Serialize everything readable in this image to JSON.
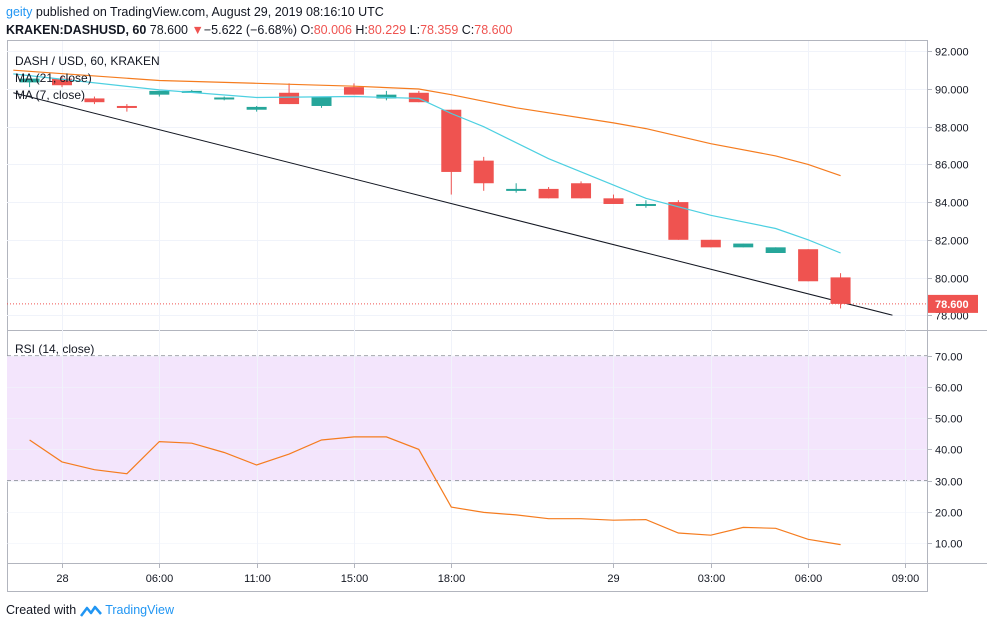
{
  "header": {
    "user": "geity",
    "published_text": "published on TradingView.com, August 29, 2019 08:16:10 UTC",
    "symbol": "KRAKEN:DASHUSD, 60",
    "last": "78.600",
    "change_arrow": "▼",
    "change": "−5.622 (−6.68%)",
    "o_label": "O:",
    "o_val": "80.006",
    "h_label": "H:",
    "h_val": "80.229",
    "l_label": "L:",
    "l_val": "78.359",
    "c_label": "C:",
    "c_val": "78.600"
  },
  "legend": {
    "title": "DASH / USD, 60, KRAKEN",
    "ma21": "MA (21, close)",
    "ma7": "MA (7, close)",
    "rsi": "RSI (14, close)"
  },
  "price_tag": "78.600",
  "footer": {
    "created_with": "Created with",
    "brand": "TradingView"
  },
  "colors": {
    "up": "#26a69a",
    "down": "#ef5350",
    "ma21": "#f57c1f",
    "ma7": "#4dd0e1",
    "rsi_line": "#f57c1f",
    "rsi_band": "#f3e5fc",
    "trendline": "#131722",
    "accent": "#2196f3"
  },
  "chart_data": [
    {
      "type": "candlestick",
      "title": "DASH / USD, 60, KRAKEN",
      "ylim": [
        77.5,
        92.5
      ],
      "y_ticks": [
        "92.000",
        "90.000",
        "88.000",
        "86.000",
        "84.000",
        "82.000",
        "80.000",
        "78.000"
      ],
      "x_ticks": [
        {
          "label": "28",
          "x": 0
        },
        {
          "label": "06:00",
          "x": 3
        },
        {
          "label": "11:00",
          "x": 6
        },
        {
          "label": "15:00",
          "x": 9
        },
        {
          "label": "18:00",
          "x": 12
        },
        {
          "label": "29",
          "x": 17
        },
        {
          "label": "03:00",
          "x": 20
        },
        {
          "label": "06:00",
          "x": 23
        },
        {
          "label": "09:00",
          "x": 26
        }
      ],
      "candles": [
        {
          "x": -1,
          "o": 90.35,
          "h": 90.5,
          "l": 90.1,
          "c": 90.55
        },
        {
          "x": 0,
          "o": 90.55,
          "h": 90.7,
          "l": 90.1,
          "c": 90.2
        },
        {
          "x": 1,
          "o": 89.5,
          "h": 89.6,
          "l": 89.2,
          "c": 89.3
        },
        {
          "x": 2,
          "o": 89.1,
          "h": 89.2,
          "l": 88.8,
          "c": 89.05
        },
        {
          "x": 3,
          "o": 89.7,
          "h": 89.9,
          "l": 89.6,
          "c": 89.9
        },
        {
          "x": 4,
          "o": 89.85,
          "h": 89.95,
          "l": 89.8,
          "c": 89.9
        },
        {
          "x": 5,
          "o": 89.5,
          "h": 89.6,
          "l": 89.4,
          "c": 89.55
        },
        {
          "x": 6,
          "o": 88.9,
          "h": 89.1,
          "l": 88.8,
          "c": 89.05
        },
        {
          "x": 7,
          "o": 89.8,
          "h": 90.3,
          "l": 89.2,
          "c": 89.2
        },
        {
          "x": 8,
          "o": 89.1,
          "h": 89.6,
          "l": 89.0,
          "c": 89.6
        },
        {
          "x": 9,
          "o": 90.1,
          "h": 90.3,
          "l": 89.7,
          "c": 89.7
        },
        {
          "x": 10,
          "o": 89.5,
          "h": 89.9,
          "l": 89.4,
          "c": 89.7
        },
        {
          "x": 11,
          "o": 89.8,
          "h": 89.9,
          "l": 89.3,
          "c": 89.3
        },
        {
          "x": 12,
          "o": 88.9,
          "h": 88.9,
          "l": 84.4,
          "c": 85.6
        },
        {
          "x": 13,
          "o": 86.2,
          "h": 86.4,
          "l": 84.6,
          "c": 85.0
        },
        {
          "x": 14,
          "o": 84.6,
          "h": 85.0,
          "l": 84.5,
          "c": 84.7
        },
        {
          "x": 15,
          "o": 84.7,
          "h": 84.8,
          "l": 84.2,
          "c": 84.2
        },
        {
          "x": 16,
          "o": 85.0,
          "h": 85.1,
          "l": 84.2,
          "c": 84.2
        },
        {
          "x": 17,
          "o": 84.2,
          "h": 84.4,
          "l": 83.9,
          "c": 83.9
        },
        {
          "x": 18,
          "o": 83.9,
          "h": 84.1,
          "l": 83.7,
          "c": 83.9
        },
        {
          "x": 19,
          "o": 84.0,
          "h": 84.1,
          "l": 82.0,
          "c": 82.0
        },
        {
          "x": 20,
          "o": 82.0,
          "h": 82.0,
          "l": 81.6,
          "c": 81.6
        },
        {
          "x": 21,
          "o": 81.6,
          "h": 81.8,
          "l": 81.6,
          "c": 81.8
        },
        {
          "x": 22,
          "o": 81.3,
          "h": 81.6,
          "l": 81.3,
          "c": 81.6
        },
        {
          "x": 23,
          "o": 81.5,
          "h": 81.5,
          "l": 79.8,
          "c": 79.8
        },
        {
          "x": 24,
          "o": 80.006,
          "h": 80.229,
          "l": 78.359,
          "c": 78.6
        }
      ],
      "ma21": [
        {
          "x": -1.5,
          "y": 91.0
        },
        {
          "x": 3,
          "y": 90.45
        },
        {
          "x": 6,
          "y": 90.3
        },
        {
          "x": 9,
          "y": 90.15
        },
        {
          "x": 11,
          "y": 90.0
        },
        {
          "x": 12,
          "y": 89.7
        },
        {
          "x": 14,
          "y": 89.0
        },
        {
          "x": 17,
          "y": 88.2
        },
        {
          "x": 18,
          "y": 87.9
        },
        {
          "x": 20,
          "y": 87.1
        },
        {
          "x": 22,
          "y": 86.45
        },
        {
          "x": 23,
          "y": 86.0
        },
        {
          "x": 24,
          "y": 85.4
        }
      ],
      "ma7": [
        {
          "x": -1.5,
          "y": 90.8
        },
        {
          "x": 3,
          "y": 89.95
        },
        {
          "x": 6,
          "y": 89.55
        },
        {
          "x": 9,
          "y": 89.6
        },
        {
          "x": 11,
          "y": 89.5
        },
        {
          "x": 12,
          "y": 88.7
        },
        {
          "x": 13,
          "y": 88.0
        },
        {
          "x": 15,
          "y": 86.3
        },
        {
          "x": 17,
          "y": 84.9
        },
        {
          "x": 18,
          "y": 84.2
        },
        {
          "x": 20,
          "y": 83.3
        },
        {
          "x": 22,
          "y": 82.6
        },
        {
          "x": 23,
          "y": 82.0
        },
        {
          "x": 24,
          "y": 81.3
        }
      ],
      "trendline": [
        {
          "x": -1.5,
          "y": 89.8
        },
        {
          "x": 25.6,
          "y": 78.0
        }
      ],
      "last_price": 78.6
    },
    {
      "type": "line",
      "title": "RSI (14, close)",
      "ylim": [
        4,
        74
      ],
      "y_ticks": [
        "70.00",
        "60.00",
        "50.00",
        "40.00",
        "30.00",
        "20.00",
        "10.00"
      ],
      "band": [
        30,
        70
      ],
      "values": [
        {
          "x": -1,
          "y": 43
        },
        {
          "x": 0,
          "y": 36
        },
        {
          "x": 1,
          "y": 33.5
        },
        {
          "x": 2,
          "y": 32.2
        },
        {
          "x": 3,
          "y": 42.5
        },
        {
          "x": 4,
          "y": 42
        },
        {
          "x": 5,
          "y": 39
        },
        {
          "x": 6,
          "y": 35
        },
        {
          "x": 7,
          "y": 38.5
        },
        {
          "x": 8,
          "y": 43
        },
        {
          "x": 9,
          "y": 44
        },
        {
          "x": 10,
          "y": 44
        },
        {
          "x": 11,
          "y": 40
        },
        {
          "x": 12,
          "y": 21.5
        },
        {
          "x": 13,
          "y": 19.8
        },
        {
          "x": 14,
          "y": 19
        },
        {
          "x": 15,
          "y": 17.8
        },
        {
          "x": 16,
          "y": 17.8
        },
        {
          "x": 17,
          "y": 17.3
        },
        {
          "x": 18,
          "y": 17.5
        },
        {
          "x": 19,
          "y": 13.2
        },
        {
          "x": 20,
          "y": 12.5
        },
        {
          "x": 21,
          "y": 15
        },
        {
          "x": 22,
          "y": 14.7
        },
        {
          "x": 23,
          "y": 11.2
        },
        {
          "x": 24,
          "y": 9.5
        }
      ]
    }
  ]
}
